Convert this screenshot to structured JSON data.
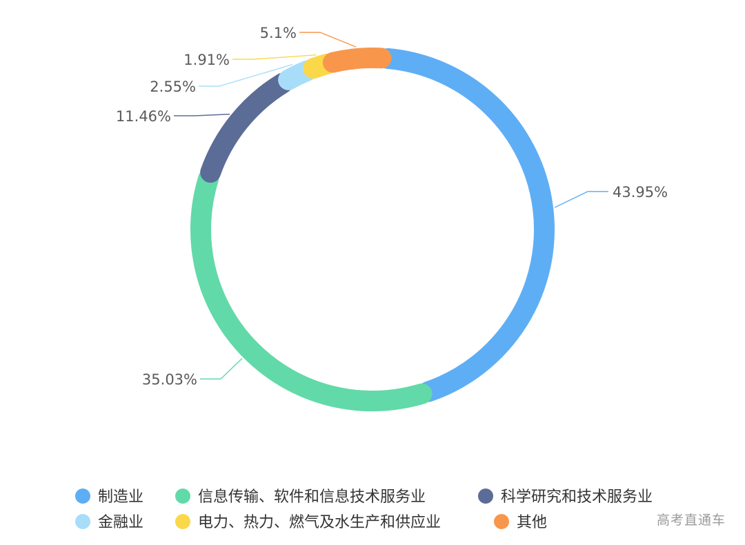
{
  "chart_data": {
    "type": "pie",
    "variant": "donut",
    "categories": [
      "制造业",
      "信息传输、软件和信息技术服务业",
      "科学研究和技术服务业",
      "金融业",
      "电力、热力、燃气及水生产和供应业",
      "其他"
    ],
    "values": [
      43.95,
      35.03,
      11.46,
      2.55,
      1.91,
      5.1
    ],
    "data_labels": [
      "43.95%",
      "35.03%",
      "11.46%",
      "2.55%",
      "1.91%",
      "5.1%"
    ],
    "colors": [
      "#5eaef5",
      "#62d9a9",
      "#5b6c96",
      "#a8ddfa",
      "#fad84a",
      "#f8974b"
    ],
    "legend_position": "bottom"
  },
  "watermark": "高考直通车"
}
